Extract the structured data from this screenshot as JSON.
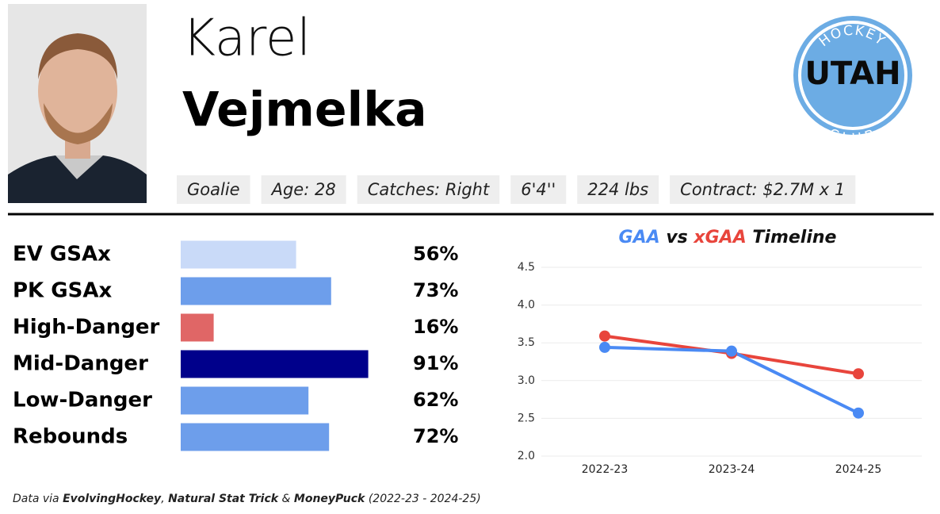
{
  "player": {
    "first_name": "Karel",
    "last_name": "Vejmelka",
    "attributes": [
      "Goalie",
      "Age: 28",
      "Catches: Right",
      "6'4''",
      "224 lbs",
      "Contract: $2.7M x 1"
    ]
  },
  "team_logo": {
    "top": "HOCKEY",
    "main": "UTAH",
    "bottom": "CLUB"
  },
  "chart_data": [
    {
      "type": "bar",
      "orientation": "horizontal",
      "categories": [
        "EV GSAx",
        "PK GSAx",
        "High-Danger",
        "Mid-Danger",
        "Low-Danger",
        "Rebounds"
      ],
      "values": [
        56,
        73,
        16,
        91,
        62,
        72
      ],
      "value_labels": [
        "56%",
        "73%",
        "16%",
        "91%",
        "62%",
        "72%"
      ],
      "colors": [
        "#c9daf8",
        "#6d9eeb",
        "#e06666",
        "#00008b",
        "#6d9eeb",
        "#6d9eeb"
      ],
      "xlim": [
        0,
        100
      ]
    },
    {
      "type": "line",
      "title_joiner": "vs",
      "title_suffix": "Timeline",
      "categories": [
        "2022-23",
        "2023-24",
        "2024-25"
      ],
      "series": [
        {
          "name": "xGAA",
          "color": "#e8453c",
          "values": [
            3.59,
            3.36,
            3.09
          ]
        },
        {
          "name": "GAA",
          "color": "#4a8af4",
          "values": [
            3.44,
            3.39,
            2.57
          ]
        }
      ],
      "ylim": [
        2.0,
        4.5
      ],
      "yticks": [
        {
          "value": 2,
          "label": "2.0"
        },
        2.5,
        {
          "value": 3,
          "label": "3.0"
        },
        3.5,
        {
          "value": 4,
          "label": "4.0"
        },
        4.5
      ],
      "grid": true
    }
  ],
  "footer": [
    "Data via ",
    "EvolvingHockey",
    ", ",
    "Natural Stat Trick",
    " & ",
    "MoneyPuck",
    " (2022-23 - 2024-25)"
  ]
}
